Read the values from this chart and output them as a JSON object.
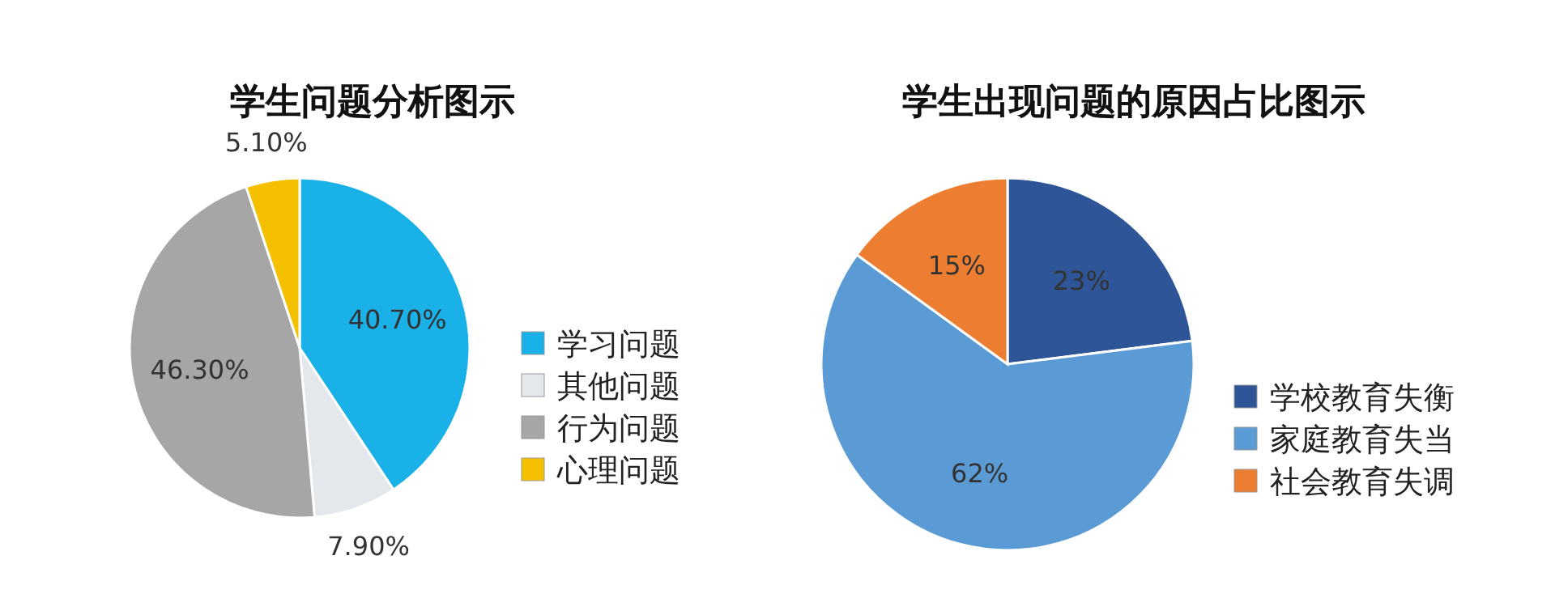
{
  "chart_data": [
    {
      "type": "pie",
      "title": "学生问题分析图示",
      "categories": [
        "学习问题",
        "其他问题",
        "行为问题",
        "心理问题"
      ],
      "values": [
        40.7,
        7.9,
        46.3,
        5.1
      ],
      "colors": [
        "#1ab0e8",
        "#e4e7ec",
        "#a6a6a6",
        "#f5c000"
      ],
      "value_labels": [
        "40.70%",
        "7.90%",
        "46.30%",
        "5.10%"
      ],
      "legend": "right"
    },
    {
      "type": "pie",
      "title": "学生出现问题的原因占比图示",
      "categories": [
        "学校教育失衡",
        "家庭教育失当",
        "社会教育失调"
      ],
      "values": [
        23,
        62,
        15
      ],
      "colors": [
        "#2e5597",
        "#5b9bd5",
        "#ed7d31"
      ],
      "value_labels": [
        "23%",
        "62%",
        "15%"
      ],
      "legend": "right"
    }
  ]
}
